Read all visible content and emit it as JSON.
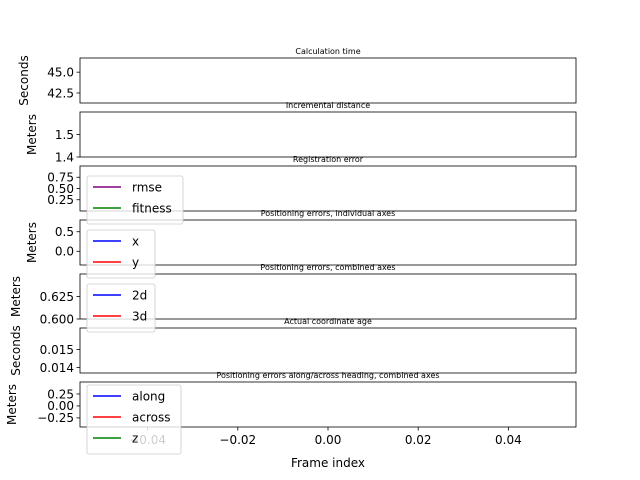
{
  "chart_data": [
    {
      "type": "line",
      "title": "Calculation time",
      "ylabel": "Seconds",
      "yticks": [
        {
          "v": 45.0,
          "label": "45.0"
        },
        {
          "v": 42.5,
          "label": "42.5"
        }
      ],
      "ylim": [
        41.3,
        46.7
      ],
      "series": [],
      "legend": null
    },
    {
      "type": "line",
      "title": "Incremental distance",
      "ylabel": "Meters",
      "yticks": [
        {
          "v": 1.5,
          "label": "1.5"
        },
        {
          "v": 1.4,
          "label": "1.4"
        }
      ],
      "ylim": [
        1.4,
        1.6
      ],
      "series": [],
      "legend": null
    },
    {
      "type": "line",
      "title": "Registration error",
      "ylabel": "",
      "yticks": [
        {
          "v": 0.75,
          "label": "0.75"
        },
        {
          "v": 0.5,
          "label": "0.50"
        },
        {
          "v": 0.25,
          "label": "0.25"
        }
      ],
      "ylim": [
        0.0,
        1.0
      ],
      "series": [
        {
          "name": "rmse",
          "color": "#800080",
          "values": []
        },
        {
          "name": "fitness",
          "color": "#008000",
          "values": []
        }
      ],
      "legend": "lower left"
    },
    {
      "type": "line",
      "title": "Positioning errors, individual axes",
      "ylabel": "Meters",
      "yticks": [
        {
          "v": 0.5,
          "label": "0.5"
        },
        {
          "v": 0.0,
          "label": "0.0"
        }
      ],
      "ylim": [
        -0.35,
        0.8
      ],
      "series": [
        {
          "name": "x",
          "color": "#0000ff",
          "values": []
        },
        {
          "name": "y",
          "color": "#ff0000",
          "values": []
        }
      ],
      "legend": "lower left"
    },
    {
      "type": "line",
      "title": "Positioning errors, combined axes",
      "ylabel": "Meters",
      "yticks": [
        {
          "v": 0.625,
          "label": "0.625"
        },
        {
          "v": 0.6,
          "label": "0.600"
        }
      ],
      "ylim": [
        0.6,
        0.65
      ],
      "series": [
        {
          "name": "2d",
          "color": "#0000ff",
          "values": []
        },
        {
          "name": "3d",
          "color": "#ff0000",
          "values": []
        }
      ],
      "legend": "lower left"
    },
    {
      "type": "line",
      "title": "Actual coordinate age",
      "ylabel": "Seconds",
      "yticks": [
        {
          "v": 0.015,
          "label": "0.015"
        },
        {
          "v": 0.014,
          "label": "0.014"
        }
      ],
      "ylim": [
        0.0137,
        0.0162
      ],
      "series": [],
      "legend": null
    },
    {
      "type": "line",
      "title": "Positioning errors along/across heading, combined axes",
      "ylabel": "Meters",
      "yticks": [
        {
          "v": 0.25,
          "label": "0.25"
        },
        {
          "v": 0.0,
          "label": "0.00"
        },
        {
          "v": -0.25,
          "label": "−0.25"
        }
      ],
      "ylim": [
        -0.44,
        0.5
      ],
      "series": [
        {
          "name": "along",
          "color": "#0000ff",
          "values": []
        },
        {
          "name": "across",
          "color": "#ff0000",
          "values": []
        },
        {
          "name": "z",
          "color": "#008000",
          "values": []
        }
      ],
      "legend": "lower left"
    }
  ],
  "shared_x": {
    "xlabel": "Frame index",
    "xlim": [
      -0.055,
      0.055
    ],
    "xticks": [
      {
        "v": -0.04,
        "label": "−0.04"
      },
      {
        "v": -0.02,
        "label": "−0.02"
      },
      {
        "v": 0.0,
        "label": "0.00"
      },
      {
        "v": 0.02,
        "label": "0.02"
      },
      {
        "v": 0.04,
        "label": "0.04"
      }
    ]
  }
}
